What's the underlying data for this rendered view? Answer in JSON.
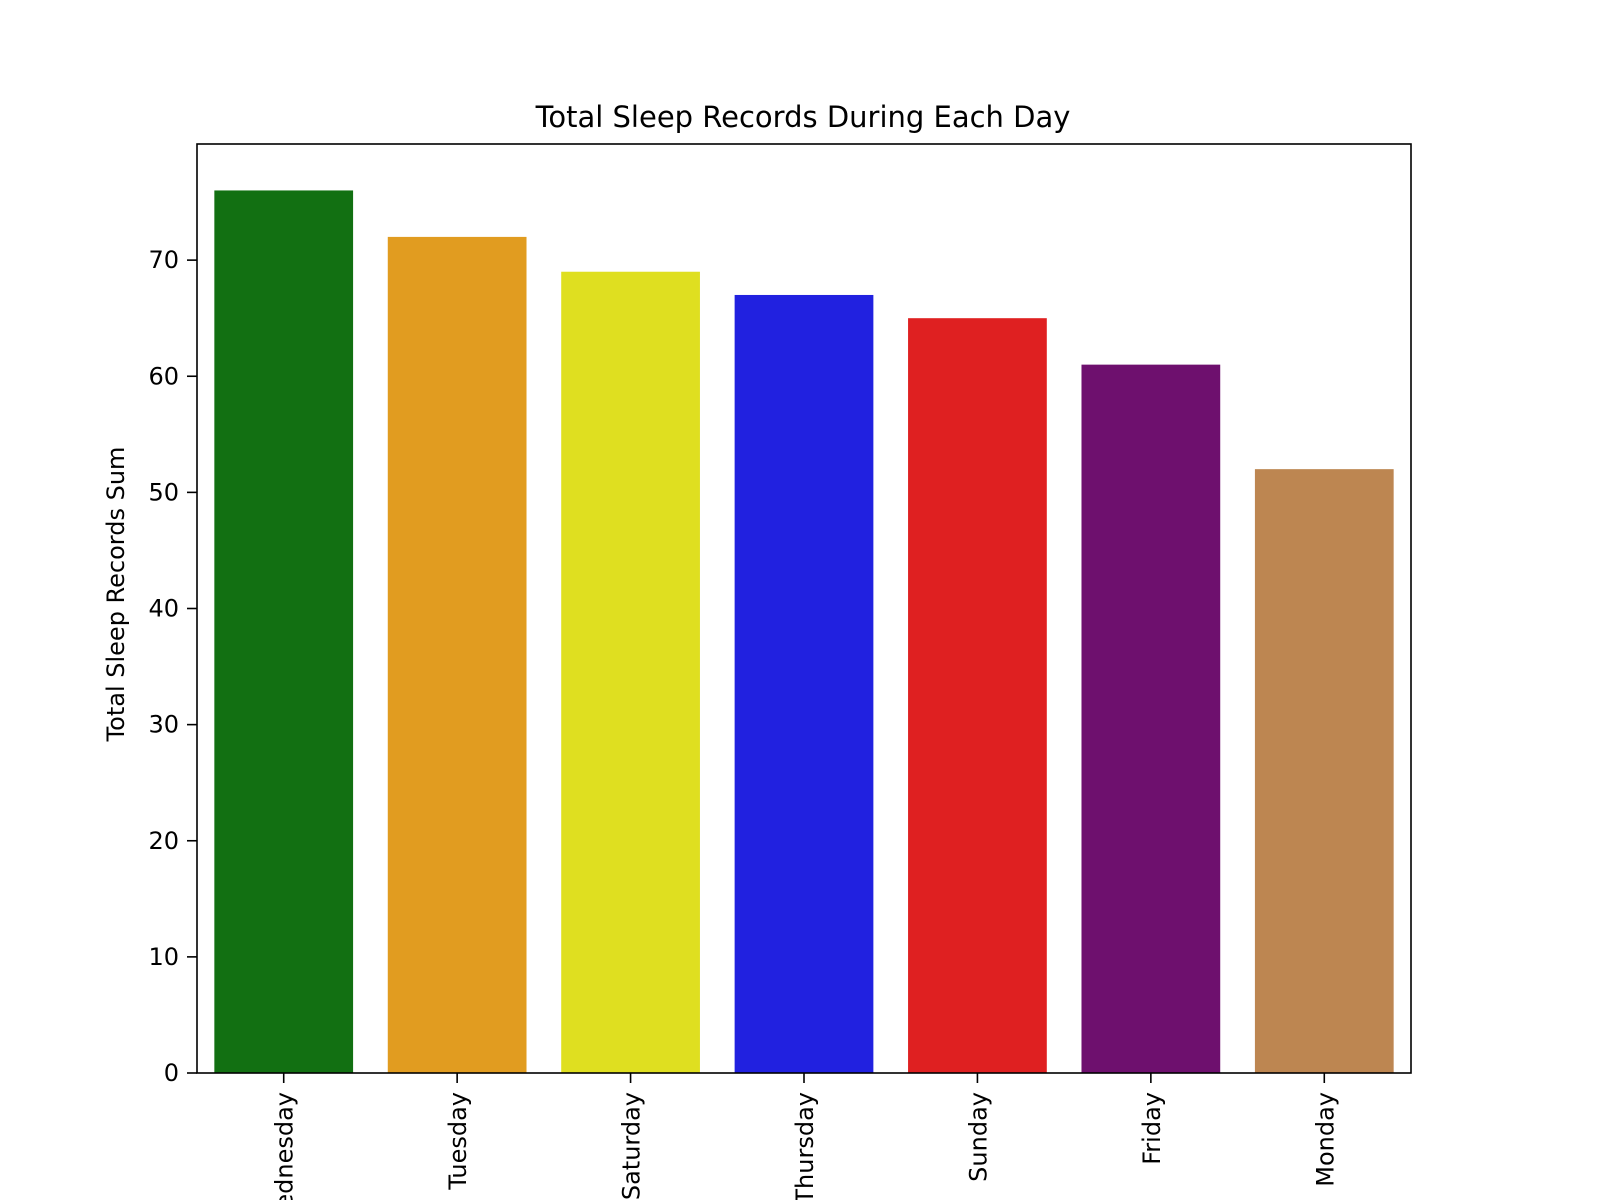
{
  "chart_data": {
    "type": "bar",
    "title": "Total Sleep Records During Each Day",
    "xlabel": "",
    "ylabel": "Total Sleep Records Sum",
    "categories": [
      "Wednesday",
      "Tuesday",
      "Saturday",
      "Thursday",
      "Sunday",
      "Friday",
      "Monday"
    ],
    "values": [
      76,
      72,
      69,
      67,
      65,
      61,
      52
    ],
    "colors": [
      "#127012",
      "#e19c20",
      "#dfdf20",
      "#2121e0",
      "#df2021",
      "#6e106e",
      "#bd8651"
    ],
    "ylim": [
      0,
      80
    ],
    "yticks": [
      0,
      10,
      20,
      30,
      40,
      50,
      60,
      70
    ],
    "ytick_labels": [
      "0",
      "10",
      "20",
      "30",
      "40",
      "50",
      "60",
      "70"
    ],
    "x_tick_rotation": 90,
    "grid": false,
    "legend": "none"
  }
}
